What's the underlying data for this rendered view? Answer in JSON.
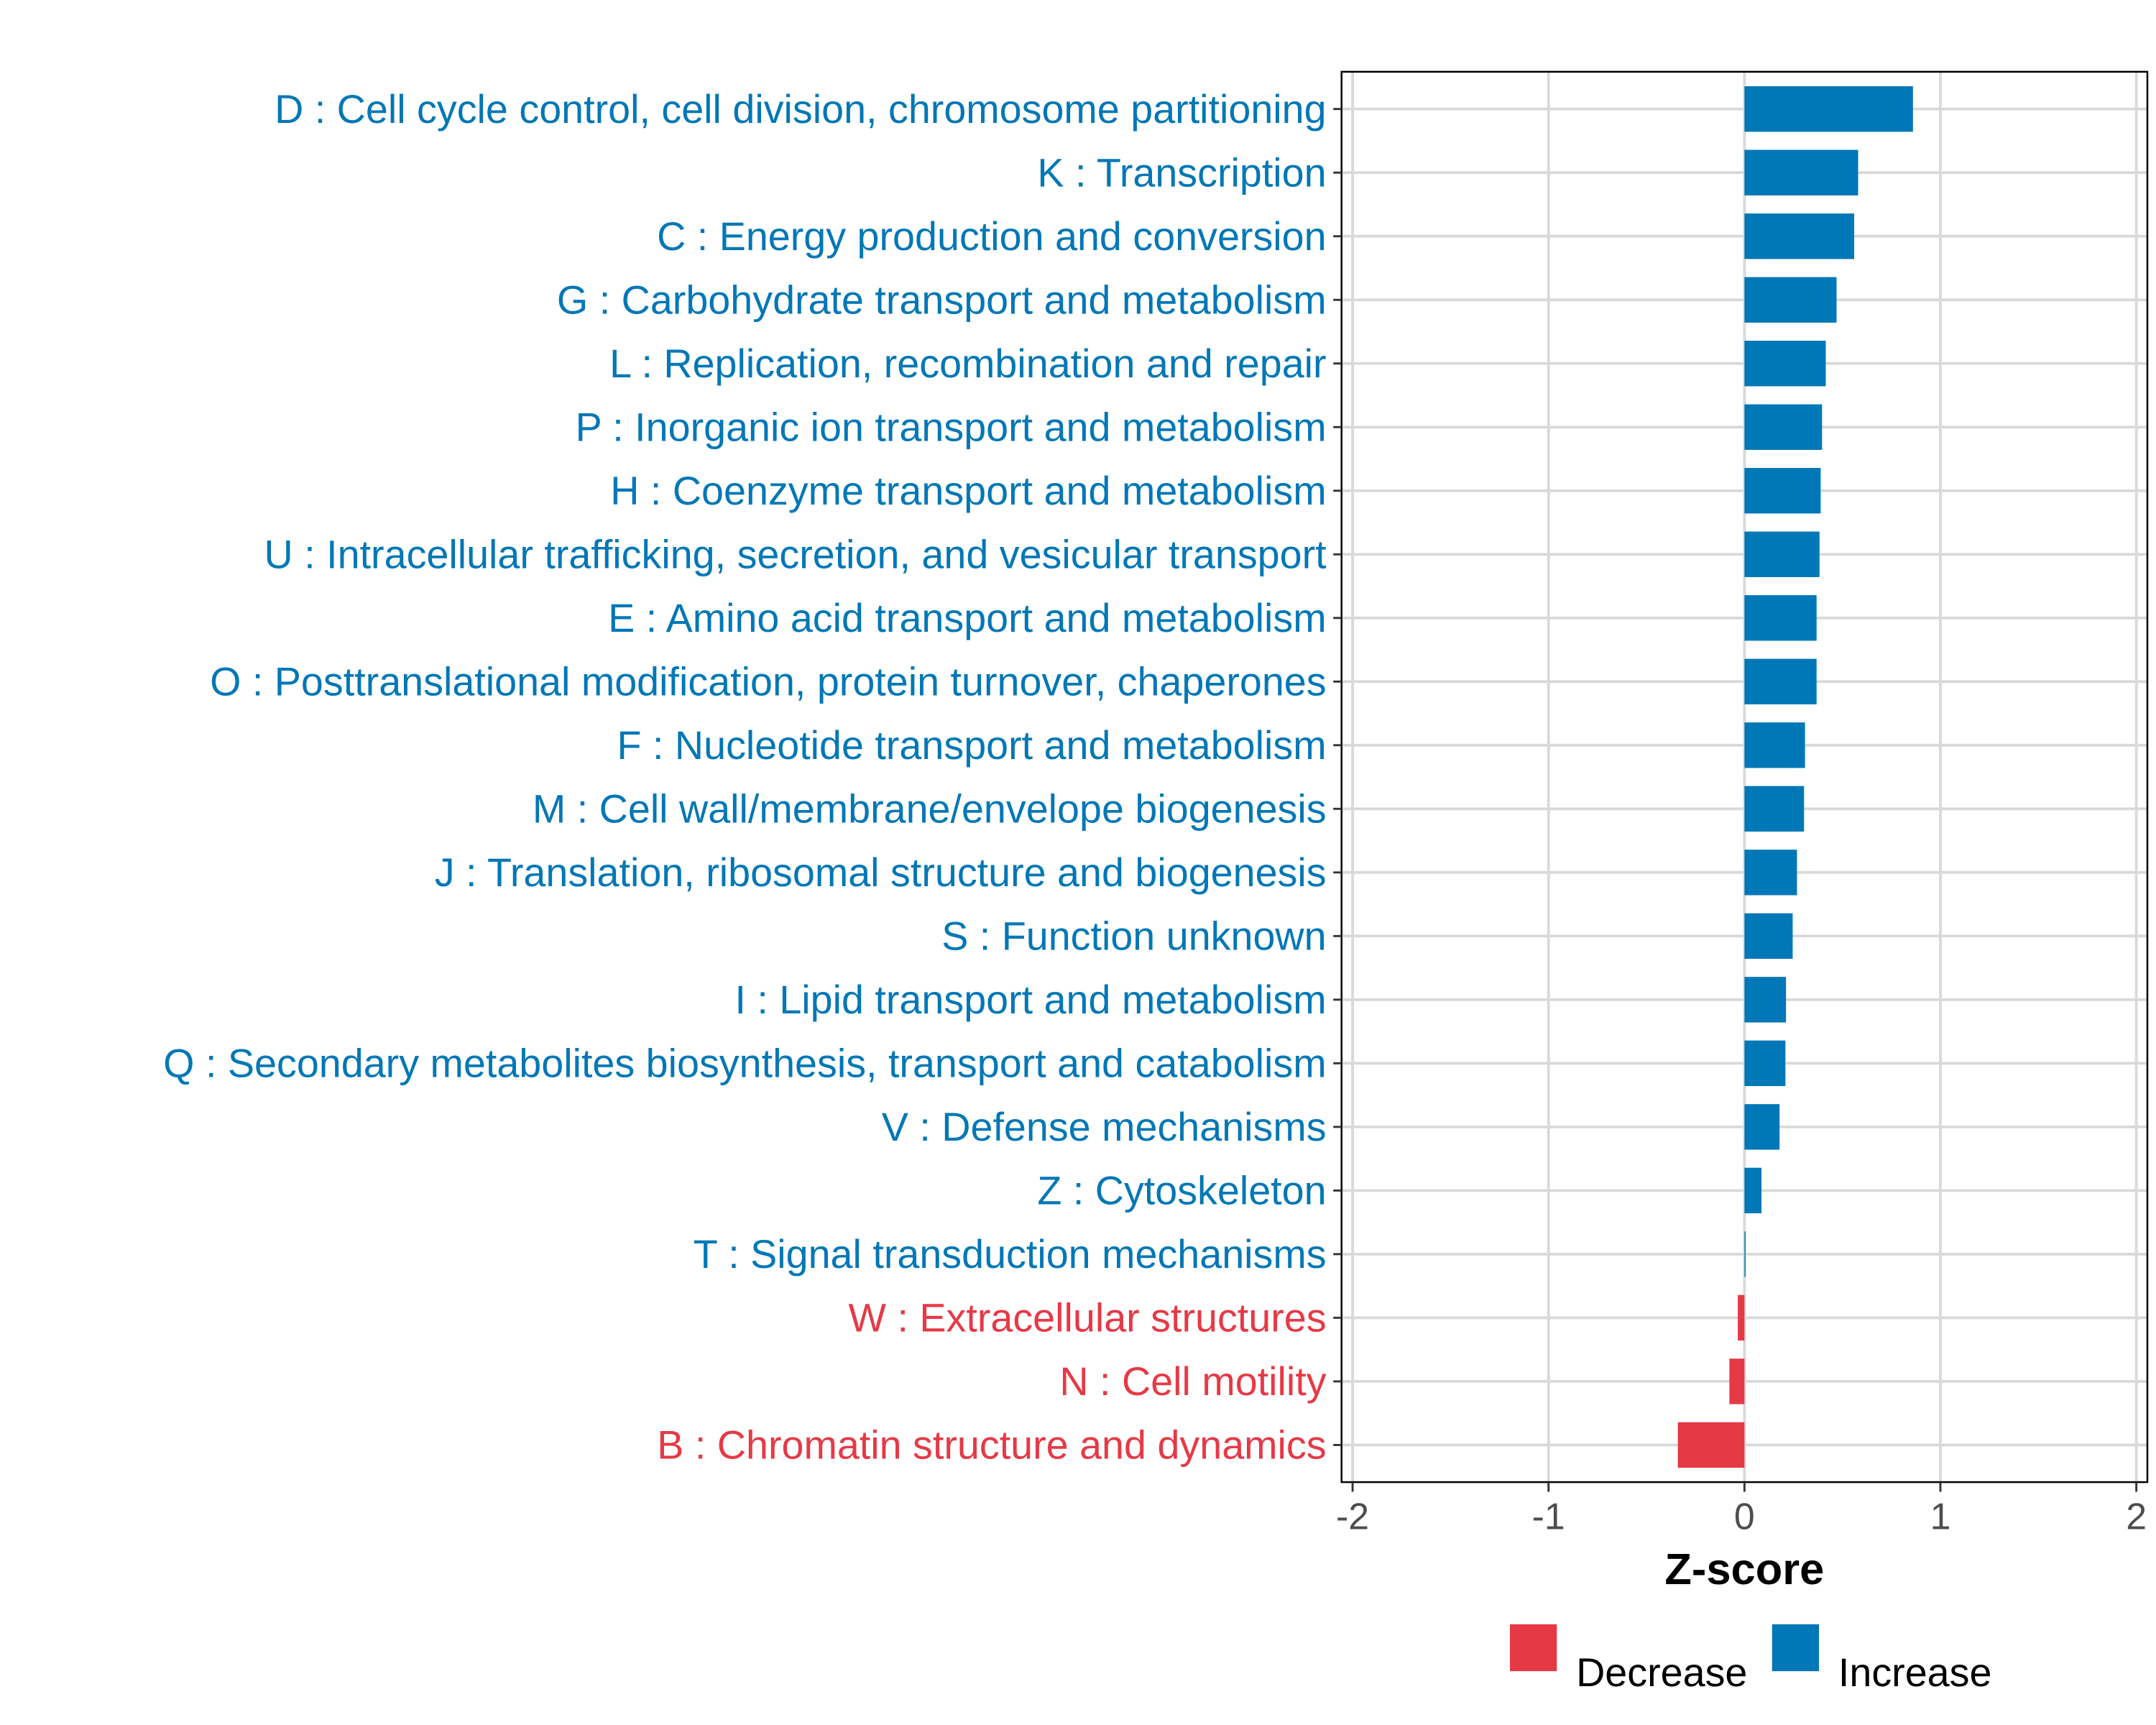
{
  "chart_data": {
    "type": "bar",
    "orientation": "horizontal",
    "title": "",
    "xlabel": "Z-score",
    "ylabel": "",
    "xlim": [
      -2,
      2
    ],
    "xticks": [
      "-2",
      "-1",
      "0",
      "1",
      "2"
    ],
    "xtick_values": [
      -2,
      -1,
      0,
      1,
      2
    ],
    "grid": true,
    "legend_position": "bottom",
    "colors": {
      "Decrease": "#E63946",
      "Increase": "#0077B6"
    },
    "legend": [
      {
        "label": "Decrease",
        "color": "#E63946"
      },
      {
        "label": "Increase",
        "color": "#0077B6"
      }
    ],
    "categories": [
      "D : Cell cycle control, cell division, chromosome partitioning",
      "K : Transcription",
      "C : Energy production and conversion",
      "G : Carbohydrate transport and metabolism",
      "L : Replication, recombination and repair",
      "P : Inorganic ion transport and metabolism",
      "H : Coenzyme transport and metabolism",
      "U : Intracellular trafficking, secretion, and vesicular transport",
      "E : Amino acid transport and metabolism",
      "O : Posttranslational modification, protein turnover, chaperones",
      "F : Nucleotide transport and metabolism",
      "M : Cell wall/membrane/envelope biogenesis",
      "J : Translation, ribosomal structure and biogenesis",
      "S : Function unknown",
      "I : Lipid transport and metabolism",
      "Q : Secondary metabolites biosynthesis, transport and catabolism",
      "V : Defense mechanisms",
      "Z : Cytoskeleton",
      "T : Signal transduction mechanisms",
      "W : Extracellular structures",
      "N : Cell motility",
      "B : Chromatin structure and dynamics"
    ],
    "values": [
      0.86,
      0.58,
      0.56,
      0.47,
      0.415,
      0.396,
      0.389,
      0.383,
      0.368,
      0.368,
      0.309,
      0.304,
      0.268,
      0.246,
      0.212,
      0.209,
      0.179,
      0.087,
      0.003,
      -0.034,
      -0.077,
      -0.34
    ],
    "groups": [
      "Increase",
      "Increase",
      "Increase",
      "Increase",
      "Increase",
      "Increase",
      "Increase",
      "Increase",
      "Increase",
      "Increase",
      "Increase",
      "Increase",
      "Increase",
      "Increase",
      "Increase",
      "Increase",
      "Increase",
      "Increase",
      "Increase",
      "Decrease",
      "Decrease",
      "Decrease"
    ]
  }
}
